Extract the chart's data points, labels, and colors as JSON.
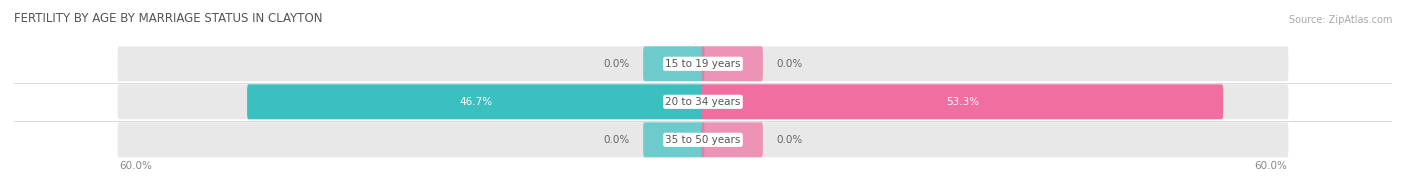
{
  "title": "FERTILITY BY AGE BY MARRIAGE STATUS IN CLAYTON",
  "source": "Source: ZipAtlas.com",
  "categories": [
    "15 to 19 years",
    "20 to 34 years",
    "35 to 50 years"
  ],
  "married_values": [
    0.0,
    46.7,
    0.0
  ],
  "unmarried_values": [
    0.0,
    53.3,
    0.0
  ],
  "xlim": 60.0,
  "married_color": "#3bbfbf",
  "unmarried_color": "#f06fa0",
  "bar_bg_color": "#e8e8e8",
  "bar_height": 0.62,
  "category_label_fontsize": 7.5,
  "value_label_fontsize": 7.5,
  "title_fontsize": 8.5,
  "axis_label_fontsize": 7.5,
  "legend_fontsize": 8,
  "background_color": "#ffffff",
  "nub_size": 6.0
}
